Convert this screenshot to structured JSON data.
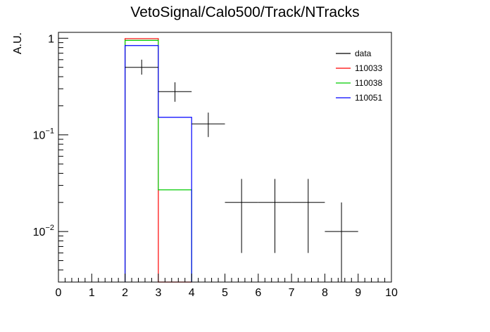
{
  "chart_data": {
    "type": "histogram",
    "title": "VetoSignal/Calo500/Track/NTracks",
    "xlabel": "",
    "ylabel": "A.U.",
    "xlim": [
      0,
      10
    ],
    "ylim": [
      0.003,
      1.15
    ],
    "yscale": "log",
    "x_ticks": [
      "0",
      "1",
      "2",
      "3",
      "4",
      "5",
      "6",
      "7",
      "8",
      "9",
      "10"
    ],
    "y_ticks": [
      {
        "value": 1,
        "base": "1",
        "exp": ""
      },
      {
        "value": 0.1,
        "base": "10",
        "exp": "−1"
      },
      {
        "value": 0.01,
        "base": "10",
        "exp": "−2"
      }
    ],
    "legend_position": "top-right",
    "grid": false,
    "series": [
      {
        "name": "data",
        "kind": "points",
        "color": "#000000",
        "points": [
          {
            "x": 2.5,
            "y": 0.5,
            "xerr": 0.5,
            "ylo": 0.42,
            "yhi": 0.6
          },
          {
            "x": 3.5,
            "y": 0.28,
            "xerr": 0.5,
            "ylo": 0.22,
            "yhi": 0.35
          },
          {
            "x": 4.5,
            "y": 0.13,
            "xerr": 0.5,
            "ylo": 0.095,
            "yhi": 0.17
          },
          {
            "x": 5.5,
            "y": 0.02,
            "xerr": 0.5,
            "ylo": 0.006,
            "yhi": 0.035
          },
          {
            "x": 6.5,
            "y": 0.02,
            "xerr": 0.5,
            "ylo": 0.006,
            "yhi": 0.035
          },
          {
            "x": 7.5,
            "y": 0.02,
            "xerr": 0.5,
            "ylo": 0.006,
            "yhi": 0.035
          },
          {
            "x": 8.5,
            "y": 0.01,
            "xerr": 0.5,
            "ylo": 0.0025,
            "yhi": 0.02
          }
        ]
      },
      {
        "name": "110033",
        "kind": "hist",
        "color": "#ff0000",
        "bins": [
          {
            "lo": 2,
            "hi": 3,
            "value": 0.99
          },
          {
            "lo": 3,
            "hi": 4,
            "value": 0.0029
          }
        ]
      },
      {
        "name": "110038",
        "kind": "hist",
        "color": "#00cc00",
        "bins": [
          {
            "lo": 2,
            "hi": 3,
            "value": 0.95
          },
          {
            "lo": 3,
            "hi": 4,
            "value": 0.027
          }
        ]
      },
      {
        "name": "110051",
        "kind": "hist",
        "color": "#0000ff",
        "bins": [
          {
            "lo": 2,
            "hi": 3,
            "value": 0.84
          },
          {
            "lo": 3,
            "hi": 4,
            "value": 0.152
          }
        ]
      }
    ]
  }
}
